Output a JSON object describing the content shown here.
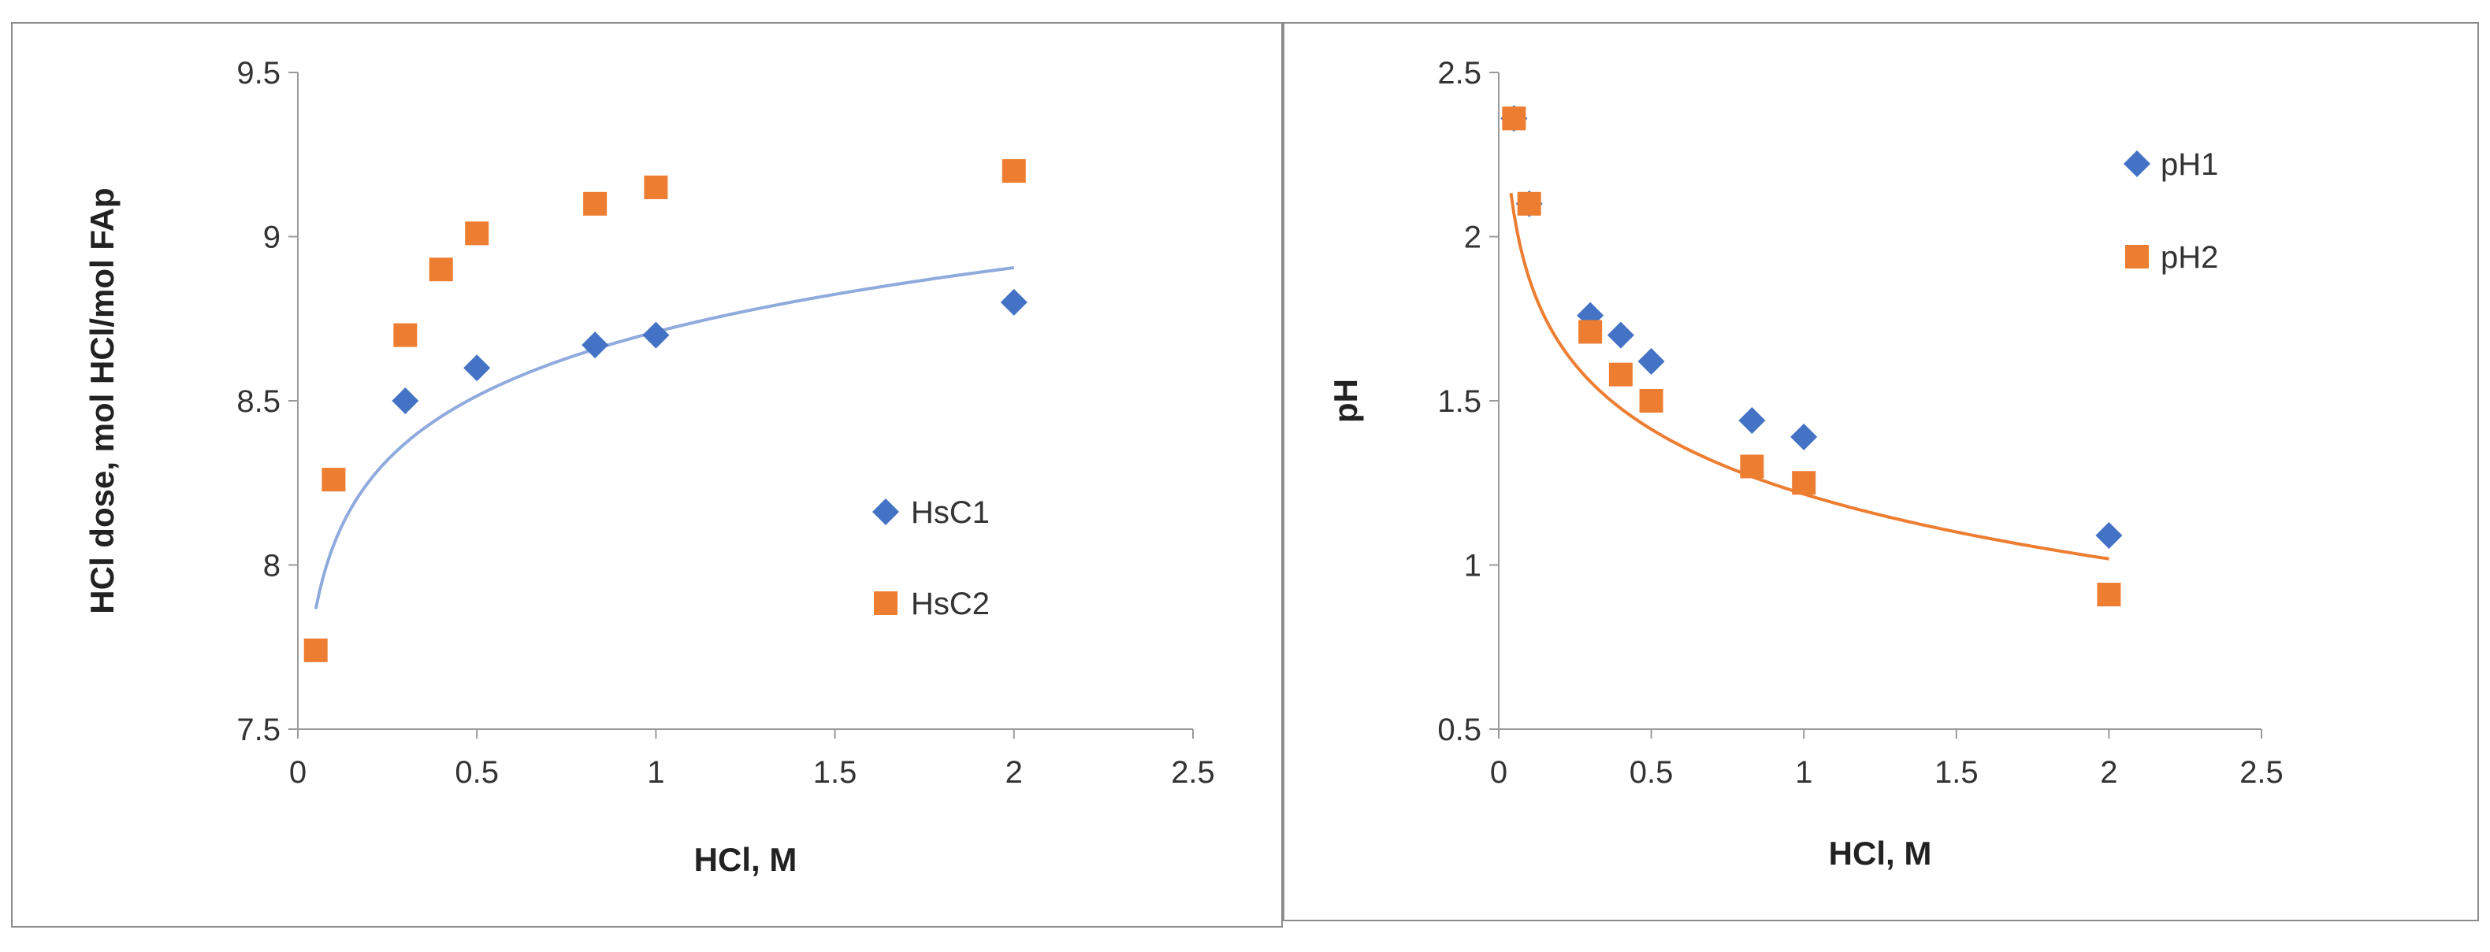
{
  "chart_data": [
    {
      "type": "scatter",
      "title": "",
      "xlabel": "HCl, M",
      "ylabel": "HCl dose, mol HCl/mol FAp",
      "xlim": [
        0,
        2.5
      ],
      "ylim": [
        7.5,
        9.5
      ],
      "xticks": [
        "0",
        "0.5",
        "1",
        "1.5",
        "2",
        "2.5"
      ],
      "yticks": [
        "7.5",
        "8",
        "8.5",
        "9",
        "9.5"
      ],
      "grid": false,
      "legend_position": "center-right",
      "series": [
        {
          "name": "HsC1",
          "marker": "diamond",
          "color": "#4472c4",
          "x": [
            0.3,
            0.5,
            0.83,
            1.0,
            2.0
          ],
          "y": [
            8.5,
            8.6,
            8.67,
            8.7,
            8.8
          ]
        },
        {
          "name": "HsC2",
          "marker": "square",
          "color": "#ed7d31",
          "x": [
            0.05,
            0.1,
            0.3,
            0.4,
            0.5,
            0.83,
            1.0,
            2.0
          ],
          "y": [
            7.74,
            8.26,
            8.7,
            8.9,
            9.01,
            9.1,
            9.15,
            9.2
          ]
        }
      ],
      "trendline": {
        "kind": "logarithmic",
        "color": "#8faadc",
        "a": 8.71,
        "b": 0.2818,
        "x_range": [
          0.05,
          2.0
        ]
      }
    },
    {
      "type": "scatter",
      "title": "",
      "xlabel": "HCl, M",
      "ylabel": "pH",
      "xlim": [
        0,
        2.5
      ],
      "ylim": [
        0.5,
        2.5
      ],
      "xticks": [
        "0",
        "0.5",
        "1",
        "1.5",
        "2",
        "2.5"
      ],
      "yticks": [
        "0.5",
        "1",
        "1.5",
        "2",
        "2.5"
      ],
      "grid": false,
      "legend_position": "top-right",
      "series": [
        {
          "name": "pH1",
          "marker": "diamond",
          "color": "#4472c4",
          "x": [
            0.05,
            0.1,
            0.3,
            0.4,
            0.5,
            0.83,
            1.0,
            2.0
          ],
          "y": [
            2.36,
            2.1,
            1.76,
            1.7,
            1.62,
            1.44,
            1.39,
            1.09
          ]
        },
        {
          "name": "pH2",
          "marker": "square",
          "color": "#ed7d31",
          "x": [
            0.05,
            0.1,
            0.3,
            0.4,
            0.5,
            0.83,
            1.0,
            2.0
          ],
          "y": [
            2.36,
            2.1,
            1.71,
            1.58,
            1.5,
            1.3,
            1.25,
            0.91
          ]
        }
      ],
      "trendline": {
        "kind": "logarithmic",
        "color": "#ed7d31",
        "a": 1.216,
        "b": -0.2848,
        "x_range": [
          0.04,
          2.0
        ]
      }
    }
  ]
}
